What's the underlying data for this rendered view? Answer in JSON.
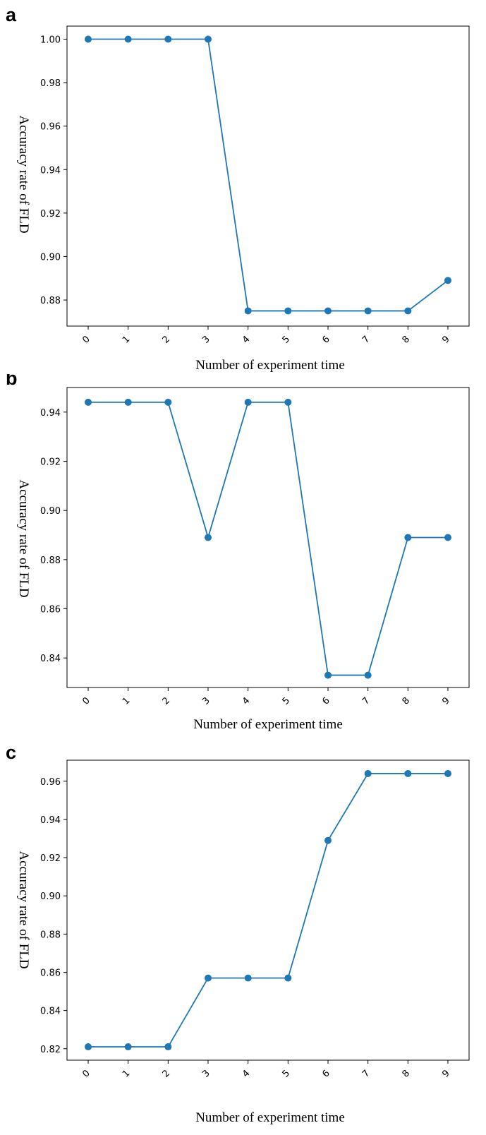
{
  "colors": {
    "line": "#1f77b4",
    "axis": "#000000"
  },
  "chart_data": [
    {
      "panel_label": "a",
      "type": "line",
      "x": [
        0,
        1,
        2,
        3,
        4,
        5,
        6,
        7,
        8,
        9
      ],
      "xticks": [
        "0",
        "1",
        "2",
        "3",
        "4",
        "5",
        "6",
        "7",
        "8",
        "9"
      ],
      "values": [
        1.0,
        1.0,
        1.0,
        1.0,
        0.875,
        0.875,
        0.875,
        0.875,
        0.875,
        0.889
      ],
      "yticks": [
        "0.88",
        "0.90",
        "0.92",
        "0.94",
        "0.96",
        "0.98",
        "1.00"
      ],
      "xlabel": "Number of experiment time",
      "ylabel": "Accuracy rate of FLD",
      "ylim": [
        0.868,
        1.006
      ],
      "grid": false
    },
    {
      "panel_label": "b",
      "type": "line",
      "x": [
        0,
        1,
        2,
        3,
        4,
        5,
        6,
        7,
        8,
        9
      ],
      "xticks": [
        "0",
        "1",
        "2",
        "3",
        "4",
        "5",
        "6",
        "7",
        "8",
        "9"
      ],
      "values": [
        0.944,
        0.944,
        0.944,
        0.889,
        0.944,
        0.944,
        0.833,
        0.833,
        0.889,
        0.889
      ],
      "yticks": [
        "0.84",
        "0.86",
        "0.88",
        "0.90",
        "0.92",
        "0.94"
      ],
      "xlabel": "Number of experiment time",
      "ylabel": "Accuracy rate of FLD",
      "ylim": [
        0.828,
        0.95
      ],
      "grid": false
    },
    {
      "panel_label": "c",
      "type": "line",
      "x": [
        0,
        1,
        2,
        3,
        4,
        5,
        6,
        7,
        8,
        9
      ],
      "xticks": [
        "0",
        "1",
        "2",
        "3",
        "4",
        "5",
        "6",
        "7",
        "8",
        "9"
      ],
      "values": [
        0.821,
        0.821,
        0.821,
        0.857,
        0.857,
        0.857,
        0.929,
        0.964,
        0.964,
        0.964
      ],
      "yticks": [
        "0.82",
        "0.84",
        "0.86",
        "0.88",
        "0.90",
        "0.92",
        "0.94",
        "0.96"
      ],
      "xlabel": "Number of experiment time",
      "ylabel": "Accuracy rate of FLD",
      "ylim": [
        0.814,
        0.971
      ],
      "grid": false
    }
  ]
}
